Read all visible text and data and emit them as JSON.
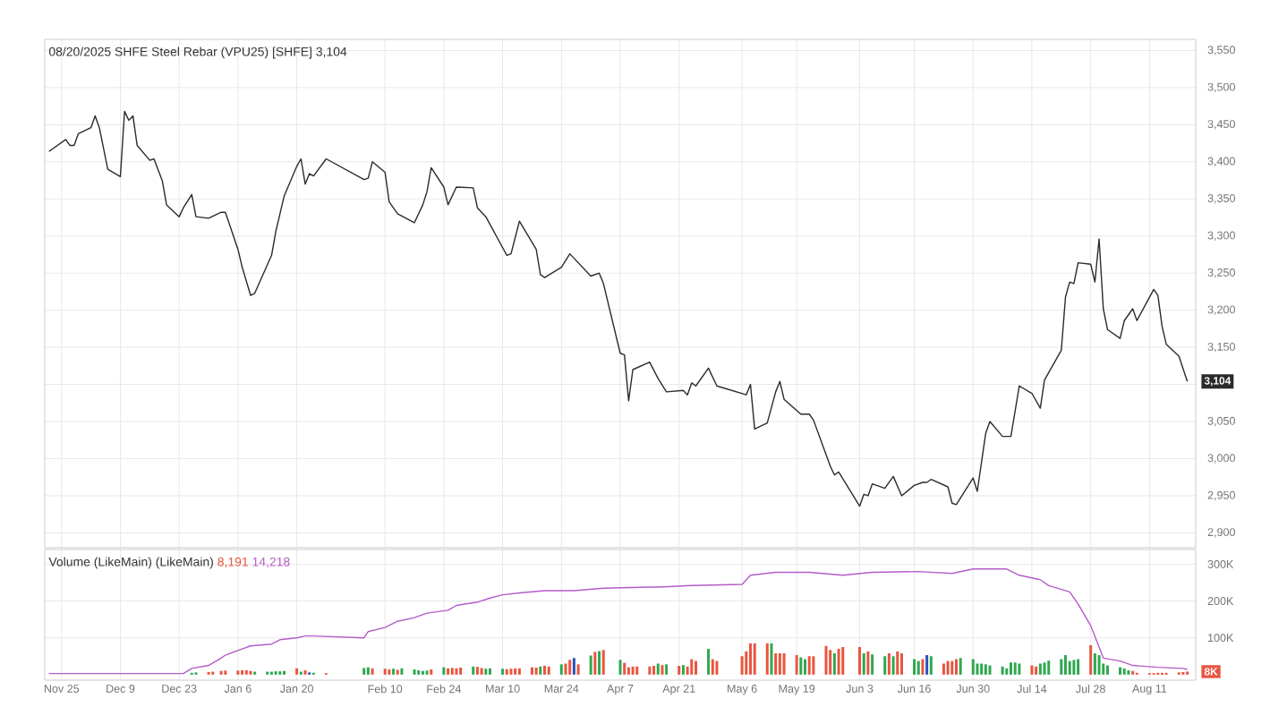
{
  "chart_data": [
    {
      "type": "line",
      "title": "08/20/2025 SHFE Steel Rebar (VPU25) [SHFE] 3,104",
      "color": "#2b2b2b",
      "x": [
        "2024-11-22",
        "2024-11-26",
        "2024-11-27",
        "2024-11-28",
        "2024-11-29",
        "2024-12-02",
        "2024-12-03",
        "2024-12-04",
        "2024-12-05",
        "2024-12-06",
        "2024-12-09",
        "2024-12-10",
        "2024-12-11",
        "2024-12-12",
        "2024-12-13",
        "2024-12-16",
        "2024-12-17",
        "2024-12-19",
        "2024-12-20",
        "2024-12-23",
        "2024-12-24",
        "2024-12-26",
        "2024-12-27",
        "2024-12-30",
        "2025-01-02",
        "2025-01-03",
        "2025-01-06",
        "2025-01-07",
        "2025-01-09",
        "2025-01-10",
        "2025-01-14",
        "2025-01-15",
        "2025-01-17",
        "2025-01-20",
        "2025-01-21",
        "2025-01-22",
        "2025-01-23",
        "2025-01-24",
        "2025-01-27",
        "2025-02-05",
        "2025-02-06",
        "2025-02-07",
        "2025-02-10",
        "2025-02-11",
        "2025-02-13",
        "2025-02-17",
        "2025-02-19",
        "2025-02-20",
        "2025-02-21",
        "2025-02-24",
        "2025-02-25",
        "2025-02-27",
        "2025-03-03",
        "2025-03-04",
        "2025-03-06",
        "2025-03-11",
        "2025-03-12",
        "2025-03-14",
        "2025-03-18",
        "2025-03-19",
        "2025-03-20",
        "2025-03-24",
        "2025-03-26",
        "2025-03-27",
        "2025-03-31",
        "2025-04-02",
        "2025-04-03",
        "2025-04-07",
        "2025-04-08",
        "2025-04-09",
        "2025-04-10",
        "2025-04-14",
        "2025-04-16",
        "2025-04-18",
        "2025-04-22",
        "2025-04-23",
        "2025-04-24",
        "2025-04-25",
        "2025-04-28",
        "2025-04-30",
        "2025-05-07",
        "2025-05-08",
        "2025-05-09",
        "2025-05-12",
        "2025-05-14",
        "2025-05-15",
        "2025-05-16",
        "2025-05-20",
        "2025-05-22",
        "2025-05-23",
        "2025-05-27",
        "2025-05-28",
        "2025-05-29",
        "2025-06-03",
        "2025-06-04",
        "2025-06-05",
        "2025-06-06",
        "2025-06-09",
        "2025-06-11",
        "2025-06-13",
        "2025-06-16",
        "2025-06-18",
        "2025-06-19",
        "2025-06-20",
        "2025-06-24",
        "2025-06-25",
        "2025-06-26",
        "2025-06-30",
        "2025-07-01",
        "2025-07-03",
        "2025-07-04",
        "2025-07-07",
        "2025-07-09",
        "2025-07-11",
        "2025-07-14",
        "2025-07-16",
        "2025-07-17",
        "2025-07-21",
        "2025-07-22",
        "2025-07-23",
        "2025-07-24",
        "2025-07-25",
        "2025-07-28",
        "2025-07-29",
        "2025-07-30",
        "2025-07-31",
        "2025-08-01",
        "2025-08-04",
        "2025-08-05",
        "2025-08-07",
        "2025-08-08",
        "2025-08-12",
        "2025-08-13",
        "2025-08-14",
        "2025-08-15",
        "2025-08-18",
        "2025-08-20"
      ],
      "values": [
        3414,
        3430,
        3422,
        3422,
        3438,
        3446,
        3462,
        3446,
        3418,
        3390,
        3380,
        3468,
        3456,
        3462,
        3422,
        3402,
        3404,
        3374,
        3342,
        3326,
        3338,
        3356,
        3326,
        3324,
        3332,
        3332,
        3282,
        3258,
        3220,
        3223,
        3274,
        3306,
        3354,
        3394,
        3404,
        3370,
        3384,
        3381,
        3404,
        3376,
        3378,
        3400,
        3386,
        3346,
        3330,
        3318,
        3342,
        3360,
        3392,
        3366,
        3342,
        3366,
        3365,
        3338,
        3326,
        3274,
        3276,
        3320,
        3282,
        3248,
        3244,
        3258,
        3276,
        3270,
        3246,
        3250,
        3236,
        3142,
        3140,
        3078,
        3120,
        3130,
        3108,
        3090,
        3092,
        3086,
        3102,
        3098,
        3122,
        3098,
        3086,
        3100,
        3040,
        3048,
        3090,
        3104,
        3080,
        3060,
        3060,
        3052,
        2990,
        2978,
        2982,
        2936,
        2952,
        2950,
        2966,
        2960,
        2976,
        2950,
        2964,
        2968,
        2968,
        2972,
        2962,
        2940,
        2938,
        2974,
        2956,
        3034,
        3050,
        3030,
        3030,
        3098,
        3088,
        3068,
        3106,
        3146,
        3218,
        3238,
        3236,
        3264,
        3262,
        3238,
        3296,
        3202,
        3174,
        3162,
        3186,
        3202,
        3186,
        3228,
        3220,
        3178,
        3154,
        3138,
        3104
      ],
      "xlim": [
        "2024-11-21",
        "2025-08-22"
      ],
      "ylim": [
        2880,
        3565
      ],
      "xticks": [
        {
          "value": "2024-11-25",
          "label": null
        },
        {
          "value": "2024-12-09",
          "label": null
        },
        {
          "value": "2024-12-23",
          "label": null
        },
        {
          "value": "2025-01-06",
          "label": null
        },
        {
          "value": "2025-01-20",
          "label": null
        },
        {
          "value": "2025-02-10",
          "label": null
        },
        {
          "value": "2025-02-24",
          "label": null
        },
        {
          "value": "2025-03-10",
          "label": null
        },
        {
          "value": "2025-03-24",
          "label": null
        },
        {
          "value": "2025-04-07",
          "label": null
        },
        {
          "value": "2025-04-21",
          "label": null
        },
        {
          "value": "2025-05-06",
          "label": null
        },
        {
          "value": "2025-05-19",
          "label": null
        },
        {
          "value": "2025-06-03",
          "label": null
        },
        {
          "value": "2025-06-16",
          "label": null
        },
        {
          "value": "2025-06-30",
          "label": null
        },
        {
          "value": "2025-07-14",
          "label": null
        },
        {
          "value": "2025-07-28",
          "label": null
        },
        {
          "value": "2025-08-11",
          "label": null
        }
      ],
      "yticks": [
        {
          "value": 2900,
          "label": "2,900"
        },
        {
          "value": 2950,
          "label": "2,950"
        },
        {
          "value": 3000,
          "label": "3,000"
        },
        {
          "value": 3050,
          "label": "3,050"
        },
        {
          "value": 3100,
          "label": null
        },
        {
          "value": 3150,
          "label": "3,150"
        },
        {
          "value": 3200,
          "label": "3,200"
        },
        {
          "value": 3250,
          "label": "3,250"
        },
        {
          "value": 3300,
          "label": "3,300"
        },
        {
          "value": 3350,
          "label": "3,350"
        },
        {
          "value": 3400,
          "label": "3,400"
        },
        {
          "value": 3450,
          "label": "3,450"
        },
        {
          "value": 3500,
          "label": "3,500"
        },
        {
          "value": 3550,
          "label": "3,550"
        }
      ],
      "grid": true,
      "tick_labels": "y",
      "annotations": [
        {
          "text": "3,104",
          "x": "2025-08-20",
          "y": 3104
        }
      ]
    },
    {
      "type": "bar",
      "title": "Volume (LikeMain)  (LikeMain)",
      "series": [
        {
          "type": "bar",
          "x": [
            "2024-12-26",
            "2024-12-27",
            "2024-12-30",
            "2024-12-31",
            "2025-01-02",
            "2025-01-03",
            "2025-01-06",
            "2025-01-07",
            "2025-01-08",
            "2025-01-09",
            "2025-01-10",
            "2025-01-13",
            "2025-01-14",
            "2025-01-15",
            "2025-01-16",
            "2025-01-17",
            "2025-01-20",
            "2025-01-21",
            "2025-01-22",
            "2025-01-23",
            "2025-01-24",
            "2025-01-27",
            "2025-02-05",
            "2025-02-06",
            "2025-02-07",
            "2025-02-10",
            "2025-02-11",
            "2025-02-12",
            "2025-02-13",
            "2025-02-14",
            "2025-02-17",
            "2025-02-18",
            "2025-02-19",
            "2025-02-20",
            "2025-02-21",
            "2025-02-24",
            "2025-02-25",
            "2025-02-26",
            "2025-02-27",
            "2025-02-28",
            "2025-03-03",
            "2025-03-04",
            "2025-03-05",
            "2025-03-06",
            "2025-03-07",
            "2025-03-10",
            "2025-03-11",
            "2025-03-12",
            "2025-03-13",
            "2025-03-14",
            "2025-03-17",
            "2025-03-18",
            "2025-03-19",
            "2025-03-20",
            "2025-03-21",
            "2025-03-24",
            "2025-03-25",
            "2025-03-26",
            "2025-03-27",
            "2025-03-28",
            "2025-03-31",
            "2025-04-01",
            "2025-04-02",
            "2025-04-03",
            "2025-04-07",
            "2025-04-08",
            "2025-04-09",
            "2025-04-10",
            "2025-04-11",
            "2025-04-14",
            "2025-04-15",
            "2025-04-16",
            "2025-04-17",
            "2025-04-18",
            "2025-04-21",
            "2025-04-22",
            "2025-04-23",
            "2025-04-24",
            "2025-04-25",
            "2025-04-28",
            "2025-04-29",
            "2025-04-30",
            "2025-05-06",
            "2025-05-07",
            "2025-05-08",
            "2025-05-09",
            "2025-05-12",
            "2025-05-13",
            "2025-05-14",
            "2025-05-15",
            "2025-05-16",
            "2025-05-19",
            "2025-05-20",
            "2025-05-21",
            "2025-05-22",
            "2025-05-23",
            "2025-05-26",
            "2025-05-27",
            "2025-05-28",
            "2025-05-29",
            "2025-05-30",
            "2025-06-03",
            "2025-06-04",
            "2025-06-05",
            "2025-06-06",
            "2025-06-09",
            "2025-06-10",
            "2025-06-11",
            "2025-06-12",
            "2025-06-13",
            "2025-06-16",
            "2025-06-17",
            "2025-06-18",
            "2025-06-19",
            "2025-06-20",
            "2025-06-23",
            "2025-06-24",
            "2025-06-25",
            "2025-06-26",
            "2025-06-27",
            "2025-06-30",
            "2025-07-01",
            "2025-07-02",
            "2025-07-03",
            "2025-07-04",
            "2025-07-07",
            "2025-07-08",
            "2025-07-09",
            "2025-07-10",
            "2025-07-11",
            "2025-07-14",
            "2025-07-15",
            "2025-07-16",
            "2025-07-17",
            "2025-07-18",
            "2025-07-21",
            "2025-07-22",
            "2025-07-23",
            "2025-07-24",
            "2025-07-25",
            "2025-07-28",
            "2025-07-29",
            "2025-07-30",
            "2025-07-31",
            "2025-08-01",
            "2025-08-04",
            "2025-08-05",
            "2025-08-06",
            "2025-08-07",
            "2025-08-08",
            "2025-08-11",
            "2025-08-12",
            "2025-08-13",
            "2025-08-14",
            "2025-08-15",
            "2025-08-18",
            "2025-08-19",
            "2025-08-20"
          ],
          "values": [
            5000,
            6000,
            7000,
            8000,
            10000,
            11000,
            11000,
            12000,
            12000,
            10000,
            8000,
            8000,
            8000,
            9000,
            9000,
            10000,
            17000,
            8000,
            12000,
            6000,
            5000,
            4000,
            18000,
            20000,
            17000,
            16000,
            14000,
            16000,
            13000,
            17000,
            14000,
            12000,
            10000,
            11000,
            14000,
            20000,
            17000,
            18000,
            17000,
            19000,
            22000,
            21000,
            18000,
            16000,
            17000,
            16000,
            15000,
            16000,
            17000,
            17000,
            20000,
            19000,
            22000,
            24000,
            22000,
            28000,
            30000,
            40000,
            45000,
            28000,
            52000,
            62000,
            64000,
            67000,
            40000,
            32000,
            20000,
            22000,
            22000,
            22000,
            24000,
            30000,
            26000,
            28000,
            24000,
            26000,
            22000,
            42000,
            37000,
            70000,
            42000,
            37000,
            50000,
            63000,
            85000,
            85000,
            85000,
            85000,
            58000,
            58000,
            58000,
            53000,
            47000,
            42000,
            50000,
            50000,
            78000,
            67000,
            58000,
            70000,
            75000,
            75000,
            58000,
            63000,
            55000,
            50000,
            58000,
            50000,
            63000,
            58000,
            42000,
            37000,
            42000,
            53000,
            50000,
            30000,
            37000,
            37000,
            42000,
            45000,
            42000,
            30000,
            30000,
            28000,
            25000,
            22000,
            17000,
            33000,
            33000,
            30000,
            25000,
            22000,
            30000,
            33000,
            38000,
            42000,
            53000,
            37000,
            40000,
            42000,
            80000,
            58000,
            53000,
            30000,
            25000,
            20000,
            17000,
            12000,
            10000,
            5000,
            4000,
            4000,
            5000,
            5000,
            5000,
            6000,
            7000,
            8191
          ],
          "colors": [
            "#2fa84f",
            "#2fa84f",
            "#e8553f",
            "#e8553f",
            "#e8553f",
            "#e8553f",
            "#e8553f",
            "#e8553f",
            "#e8553f",
            "#e8553f",
            "#2fa84f",
            "#2fa84f",
            "#2fa84f",
            "#2fa84f",
            "#2fa84f",
            "#2fa84f",
            "#e8553f",
            "#2fa84f",
            "#e8553f",
            "#2b4fbf",
            "#2fa84f",
            "#e8553f",
            "#2fa84f",
            "#2fa84f",
            "#e8553f",
            "#e8553f",
            "#e8553f",
            "#2fa84f",
            "#e8553f",
            "#2fa84f",
            "#2fa84f",
            "#2fa84f",
            "#2fa84f",
            "#2fa84f",
            "#e8553f",
            "#2fa84f",
            "#e8553f",
            "#e8553f",
            "#e8553f",
            "#e8553f",
            "#2fa84f",
            "#e8553f",
            "#e8553f",
            "#2fa84f",
            "#2fa84f",
            "#2fa84f",
            "#e8553f",
            "#e8553f",
            "#e8553f",
            "#e8553f",
            "#e8553f",
            "#e8553f",
            "#2fa84f",
            "#e8553f",
            "#e8553f",
            "#2fa84f",
            "#e8553f",
            "#e8553f",
            "#2b4fbf",
            "#e8553f",
            "#2fa84f",
            "#e8553f",
            "#2fa84f",
            "#e8553f",
            "#2fa84f",
            "#e8553f",
            "#e8553f",
            "#e8553f",
            "#e8553f",
            "#e8553f",
            "#e8553f",
            "#2fa84f",
            "#e8553f",
            "#2fa84f",
            "#e8553f",
            "#2fa84f",
            "#e8553f",
            "#e8553f",
            "#e8553f",
            "#2fa84f",
            "#e8553f",
            "#e8553f",
            "#e8553f",
            "#e8553f",
            "#e8553f",
            "#e8553f",
            "#e8553f",
            "#2fa84f",
            "#e8553f",
            "#e8553f",
            "#e8553f",
            "#e8553f",
            "#2fa84f",
            "#2fa84f",
            "#e8553f",
            "#e8553f",
            "#e8553f",
            "#e8553f",
            "#2fa84f",
            "#e8553f",
            "#e8553f",
            "#e8553f",
            "#2fa84f",
            "#e8553f",
            "#2fa84f",
            "#2fa84f",
            "#e8553f",
            "#2fa84f",
            "#e8553f",
            "#e8553f",
            "#2fa84f",
            "#2fa84f",
            "#e8553f",
            "#2b4fbf",
            "#2fa84f",
            "#e8553f",
            "#e8553f",
            "#e8553f",
            "#e8553f",
            "#2fa84f",
            "#2fa84f",
            "#2fa84f",
            "#2fa84f",
            "#2fa84f",
            "#2fa84f",
            "#2fa84f",
            "#2fa84f",
            "#2fa84f",
            "#2fa84f",
            "#2fa84f",
            "#e8553f",
            "#e8553f",
            "#2fa84f",
            "#2fa84f",
            "#2fa84f",
            "#2fa84f",
            "#2fa84f",
            "#2fa84f",
            "#2fa84f",
            "#2fa84f",
            "#e8553f",
            "#2fa84f",
            "#2fa84f",
            "#2fa84f",
            "#2fa84f",
            "#2fa84f",
            "#2fa84f",
            "#2fa84f",
            "#e8553f",
            "#e8553f",
            "#e8553f",
            "#e8553f",
            "#e8553f",
            "#e8553f",
            "#e8553f",
            "#e8553f",
            "#e8553f",
            "#e8553f"
          ]
        },
        {
          "type": "line",
          "color": "#b45cc8",
          "x": [
            "2024-11-22",
            "2024-12-24",
            "2024-12-26",
            "2024-12-30",
            "2025-01-02",
            "2025-01-03",
            "2025-01-07",
            "2025-01-09",
            "2025-01-14",
            "2025-01-16",
            "2025-01-20",
            "2025-01-22",
            "2025-01-24",
            "2025-02-05",
            "2025-02-06",
            "2025-02-10",
            "2025-02-13",
            "2025-02-17",
            "2025-02-20",
            "2025-02-25",
            "2025-02-27",
            "2025-03-04",
            "2025-03-07",
            "2025-03-10",
            "2025-03-14",
            "2025-03-20",
            "2025-03-27",
            "2025-04-03",
            "2025-04-14",
            "2025-04-16",
            "2025-04-24",
            "2025-05-06",
            "2025-05-08",
            "2025-05-14",
            "2025-05-22",
            "2025-05-30",
            "2025-06-06",
            "2025-06-17",
            "2025-06-25",
            "2025-06-30",
            "2025-07-08",
            "2025-07-11",
            "2025-07-16",
            "2025-07-18",
            "2025-07-23",
            "2025-07-25",
            "2025-07-28",
            "2025-07-30",
            "2025-07-31",
            "2025-08-04",
            "2025-08-07",
            "2025-08-13",
            "2025-08-19",
            "2025-08-20"
          ],
          "values": [
            3000,
            3000,
            17000,
            25000,
            45000,
            53000,
            70000,
            78000,
            83000,
            95000,
            100000,
            105000,
            105000,
            100000,
            117000,
            128000,
            145000,
            155000,
            167000,
            175000,
            188000,
            197000,
            208000,
            217000,
            222000,
            228000,
            228000,
            235000,
            238000,
            238000,
            242000,
            245000,
            270000,
            278000,
            278000,
            270000,
            278000,
            280000,
            275000,
            287000,
            287000,
            270000,
            258000,
            242000,
            225000,
            192000,
            133000,
            75000,
            45000,
            37000,
            25000,
            20000,
            17000,
            14218
          ]
        }
      ],
      "xlim": [
        "2024-11-21",
        "2025-08-22"
      ],
      "ylim": [
        -15000,
        340000
      ],
      "xticks": [
        {
          "value": "2024-11-25",
          "label": "Nov 25"
        },
        {
          "value": "2024-12-09",
          "label": "Dec 9"
        },
        {
          "value": "2024-12-23",
          "label": "Dec 23"
        },
        {
          "value": "2025-01-06",
          "label": "Jan 6"
        },
        {
          "value": "2025-01-20",
          "label": "Jan 20"
        },
        {
          "value": "2025-02-10",
          "label": "Feb 10"
        },
        {
          "value": "2025-02-24",
          "label": "Feb 24"
        },
        {
          "value": "2025-03-10",
          "label": "Mar 10"
        },
        {
          "value": "2025-03-24",
          "label": "Mar 24"
        },
        {
          "value": "2025-04-07",
          "label": "Apr 7"
        },
        {
          "value": "2025-04-21",
          "label": "Apr 21"
        },
        {
          "value": "2025-05-06",
          "label": "May 6"
        },
        {
          "value": "2025-05-19",
          "label": "May 19"
        },
        {
          "value": "2025-06-03",
          "label": "Jun 3"
        },
        {
          "value": "2025-06-16",
          "label": "Jun 16"
        },
        {
          "value": "2025-06-30",
          "label": "Jun 30"
        },
        {
          "value": "2025-07-14",
          "label": "Jul 14"
        },
        {
          "value": "2025-07-28",
          "label": "Jul 28"
        },
        {
          "value": "2025-08-11",
          "label": "Aug 11"
        }
      ],
      "yticks": [
        {
          "value": 100000,
          "label": "100K"
        },
        {
          "value": 200000,
          "label": "200K"
        },
        {
          "value": 300000,
          "label": "300K"
        }
      ],
      "grid": true,
      "annotations": [
        "8,191",
        "14,218",
        {
          "text": "8K",
          "x": "2025-08-20",
          "y": 8191
        }
      ]
    }
  ]
}
